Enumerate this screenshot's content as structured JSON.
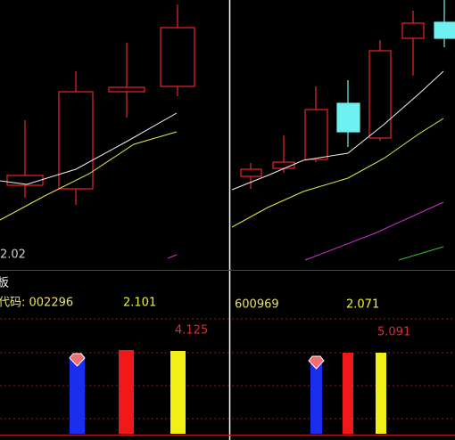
{
  "left_panel": {
    "price_label": "2.02",
    "sector_label": "板",
    "code_label": "代码: 002296",
    "value": "2.101",
    "highlight": "4.125"
  },
  "right_panel": {
    "code": "600969",
    "value": "2.071",
    "highlight": "5.091"
  }
}
